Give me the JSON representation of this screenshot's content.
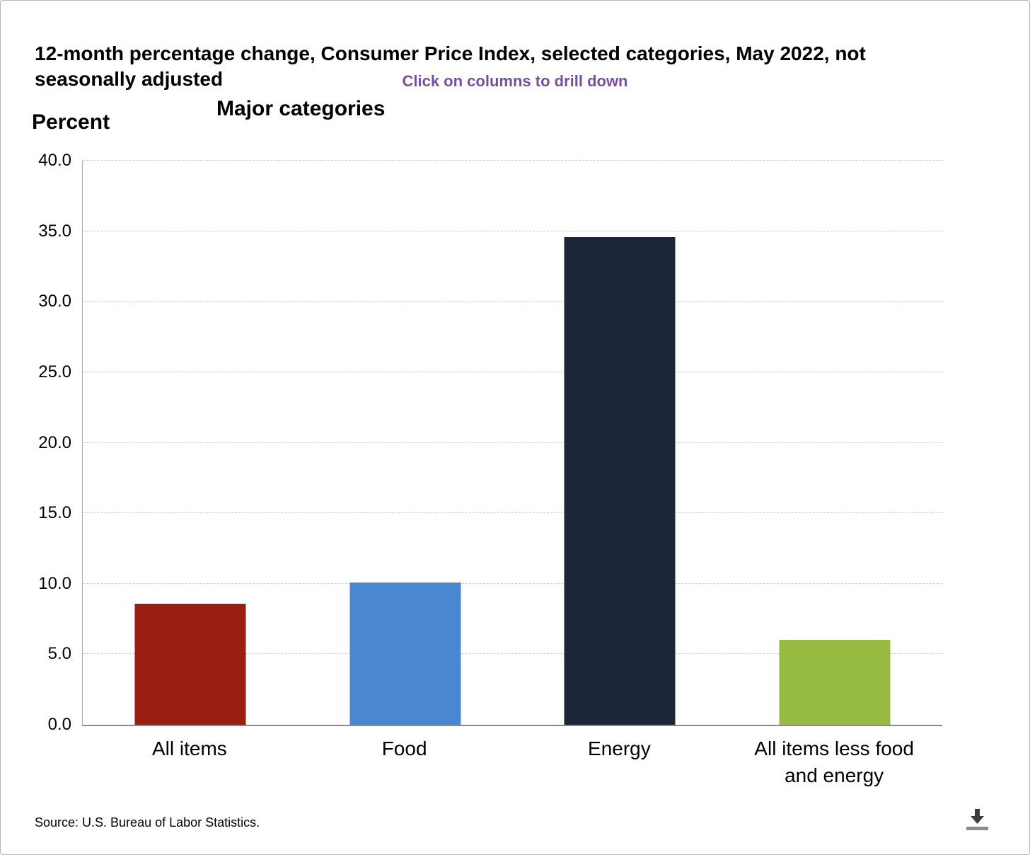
{
  "header": {
    "title": "12-month percentage change, Consumer Price Index, selected categories, May 2022, not seasonally adjusted",
    "instruction": "Click on columns to drill down"
  },
  "chart_data": {
    "type": "bar",
    "title": "Major categories",
    "ylabel": "Percent",
    "categories": [
      "All items",
      "Food",
      "Energy",
      "All items less food and energy"
    ],
    "values": [
      8.6,
      10.1,
      34.6,
      6.0
    ],
    "colors": [
      "#9a1f12",
      "#4a87d3",
      "#1b2639",
      "#97ba41"
    ],
    "ylim": [
      0,
      40
    ],
    "ytick_step": 5,
    "ytick_labels": [
      "0.0",
      "5.0",
      "10.0",
      "15.0",
      "20.0",
      "25.0",
      "30.0",
      "35.0",
      "40.0"
    ],
    "grid": "dashed horizontal",
    "legend": "none"
  },
  "footer": {
    "source": "Source: U.S. Bureau of Labor Statistics.",
    "download_icon": "download-icon"
  }
}
